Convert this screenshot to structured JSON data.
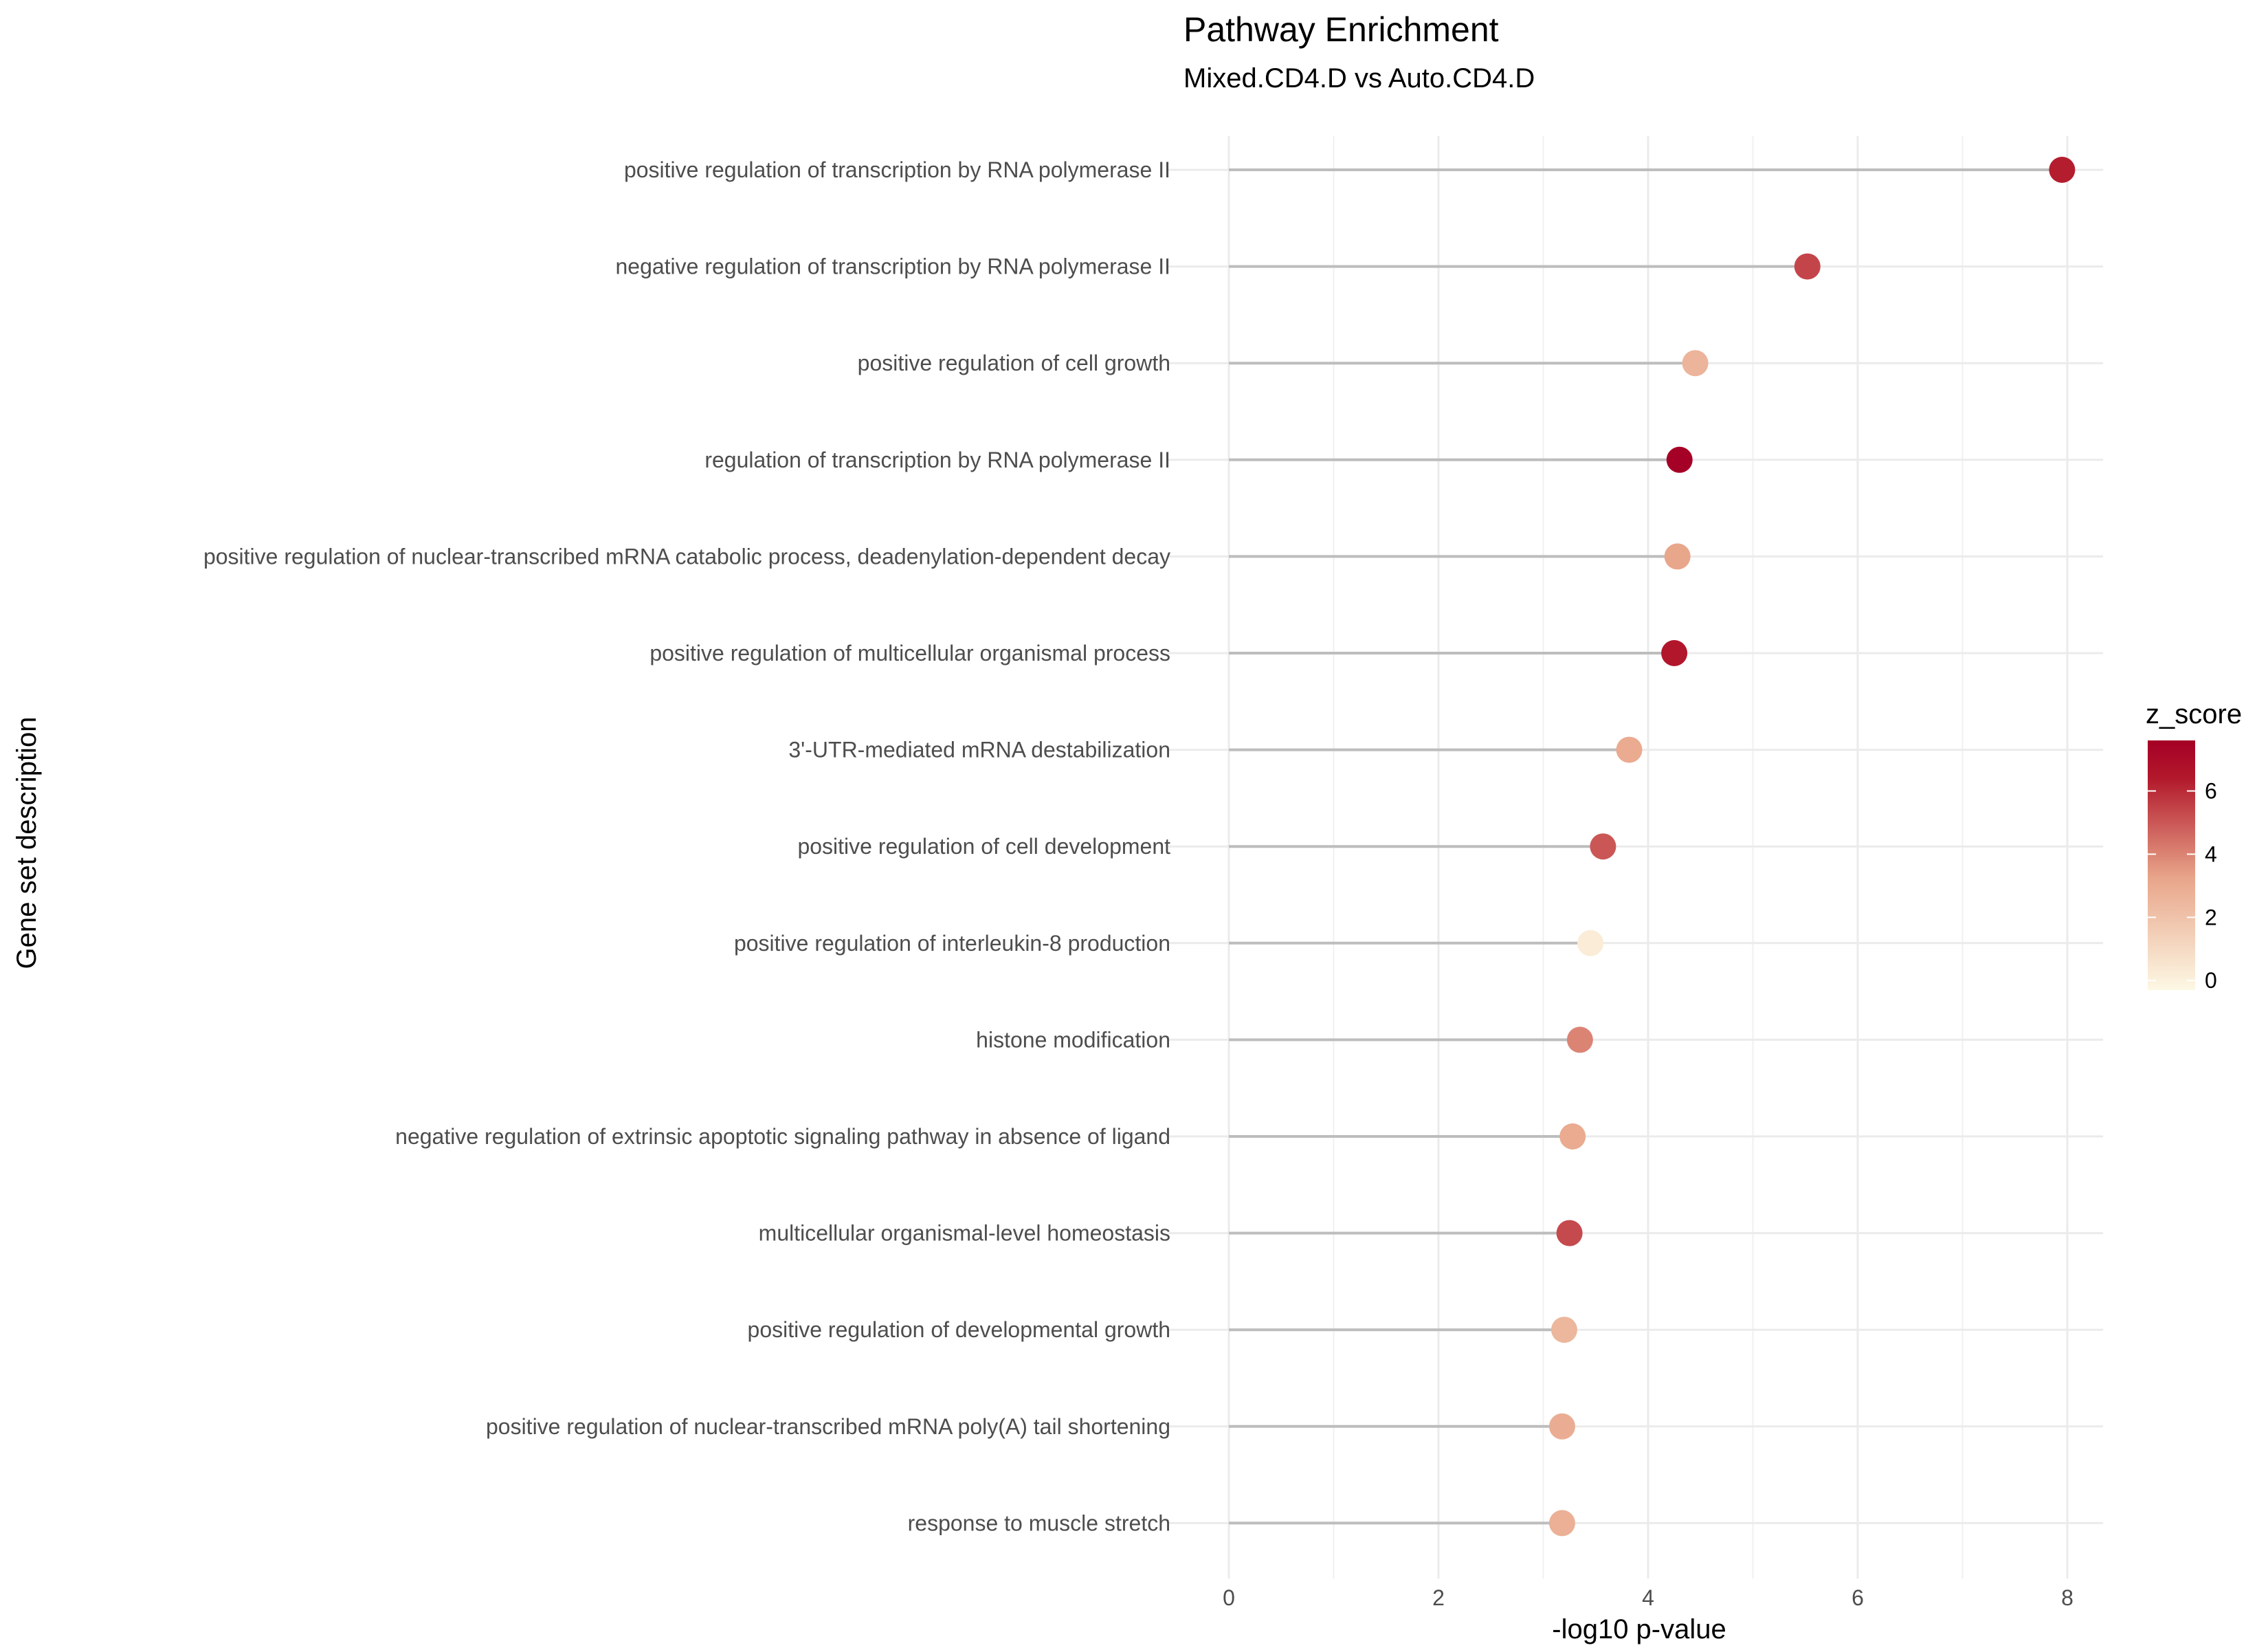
{
  "chart_data": {
    "type": "lollipop",
    "title": "Pathway Enrichment",
    "subtitle": "Mixed.CD4.D vs Auto.CD4.D",
    "xlabel": "-log10 p-value",
    "ylabel": "Gene set description",
    "xlim": [
      -0.45,
      8.35
    ],
    "x_ticks": [
      0,
      2,
      4,
      6,
      8
    ],
    "grid": true,
    "legend": {
      "title": "z_score",
      "position": "right",
      "range": [
        -0.3,
        7.6
      ],
      "ticks": [
        0,
        2,
        4,
        6
      ],
      "colors": {
        "low": "#fdf8e4",
        "mid": "#e8a58a",
        "high": "#b2182b",
        "max": "#a50026"
      }
    },
    "segment_color": "#bdbdbd",
    "points": [
      {
        "label": "positive regulation of transcription by RNA polymerase II",
        "x": 7.95,
        "z_score": 6.3
      },
      {
        "label": "negative regulation of transcription by RNA polymerase II",
        "x": 5.52,
        "z_score": 5.4
      },
      {
        "label": "positive regulation of cell growth",
        "x": 4.45,
        "z_score": 2.6
      },
      {
        "label": "regulation of transcription by RNA polymerase II",
        "x": 4.3,
        "z_score": 7.6
      },
      {
        "label": "positive regulation of nuclear-transcribed mRNA catabolic process, deadenylation-dependent decay",
        "x": 4.28,
        "z_score": 3.2
      },
      {
        "label": "positive regulation of multicellular organismal process",
        "x": 4.25,
        "z_score": 6.5
      },
      {
        "label": "3'-UTR-mediated mRNA destabilization",
        "x": 3.82,
        "z_score": 3.0
      },
      {
        "label": "positive regulation of cell development",
        "x": 3.57,
        "z_score": 5.0
      },
      {
        "label": "positive regulation of interleukin-8 production",
        "x": 3.45,
        "z_score": 0.2
      },
      {
        "label": "histone modification",
        "x": 3.35,
        "z_score": 4.0
      },
      {
        "label": "negative regulation of extrinsic apoptotic signaling pathway in absence of ligand",
        "x": 3.28,
        "z_score": 3.0
      },
      {
        "label": "multicellular organismal-level homeostasis",
        "x": 3.25,
        "z_score": 5.3
      },
      {
        "label": "positive regulation of developmental growth",
        "x": 3.2,
        "z_score": 2.5
      },
      {
        "label": "positive regulation of nuclear-transcribed mRNA poly(A) tail shortening",
        "x": 3.18,
        "z_score": 2.9
      },
      {
        "label": "response to muscle stretch",
        "x": 3.18,
        "z_score": 2.8
      }
    ]
  }
}
